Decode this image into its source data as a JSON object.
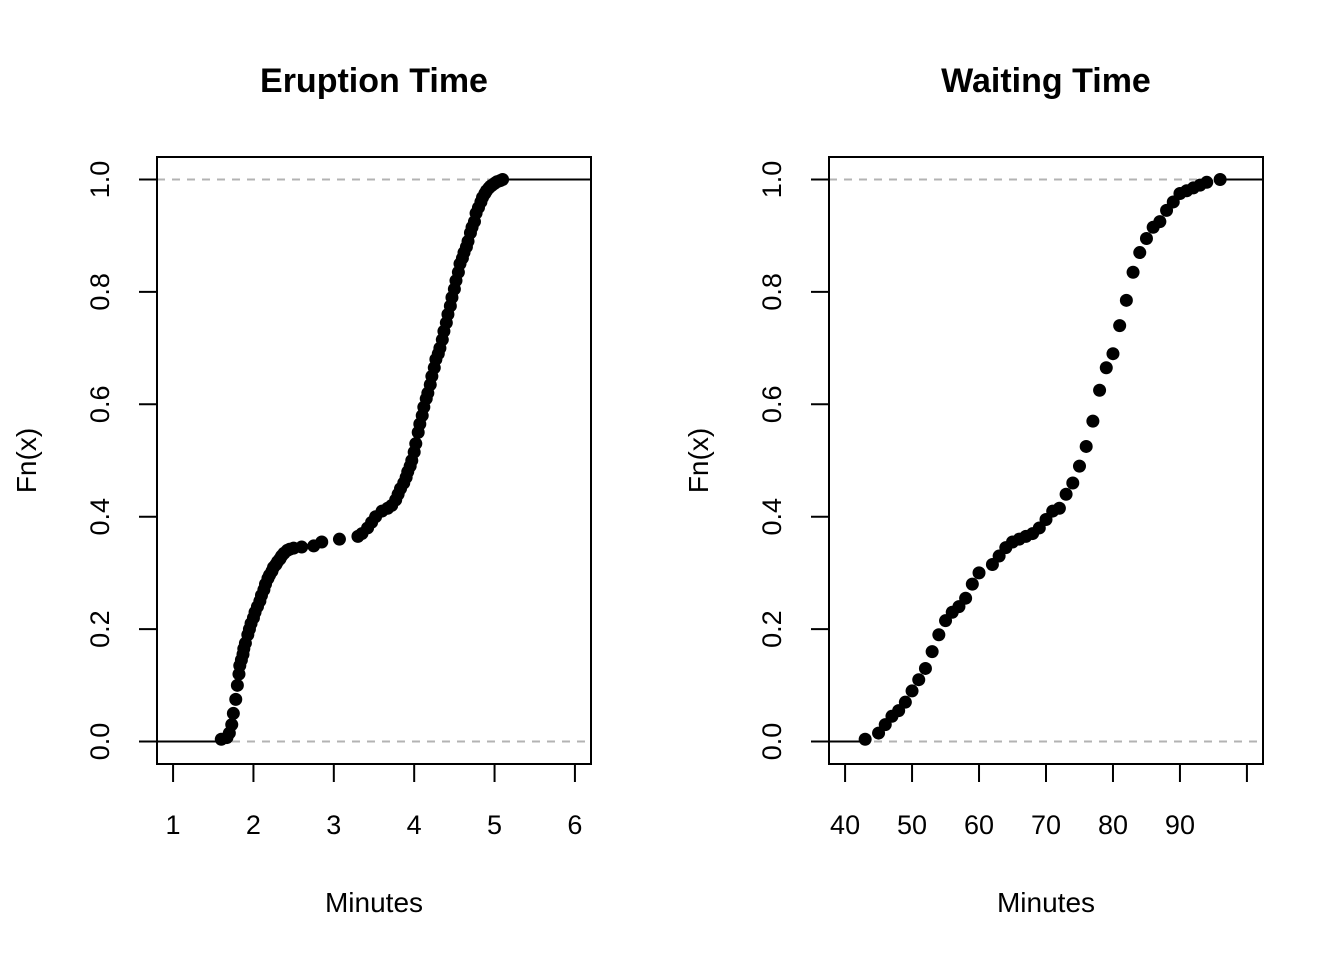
{
  "chart_data": [
    {
      "type": "scatter",
      "title": "Eruption Time",
      "xlabel": "Minutes",
      "ylabel": "Fn(x)",
      "xlim": [
        0.8,
        6.2
      ],
      "ylim": [
        -0.04,
        1.04
      ],
      "xticks": [
        "1",
        "2",
        "3",
        "4",
        "5",
        "6"
      ],
      "yticks": [
        "0.0",
        "0.2",
        "0.4",
        "0.6",
        "0.8",
        "1.0"
      ],
      "reference_lines": [
        0,
        1
      ],
      "x": [
        1.6,
        1.67,
        1.7,
        1.73,
        1.75,
        1.78,
        1.8,
        1.82,
        1.83,
        1.85,
        1.87,
        1.88,
        1.9,
        1.93,
        1.95,
        1.97,
        2.0,
        2.02,
        2.05,
        2.08,
        2.1,
        2.13,
        2.15,
        2.18,
        2.2,
        2.23,
        2.25,
        2.28,
        2.3,
        2.33,
        2.35,
        2.38,
        2.42,
        2.45,
        2.5,
        2.6,
        2.75,
        2.85,
        3.07,
        3.3,
        3.35,
        3.42,
        3.47,
        3.52,
        3.6,
        3.67,
        3.72,
        3.77,
        3.8,
        3.83,
        3.87,
        3.9,
        3.92,
        3.95,
        3.97,
        4.0,
        4.02,
        4.05,
        4.07,
        4.1,
        4.12,
        4.15,
        4.17,
        4.2,
        4.22,
        4.25,
        4.27,
        4.3,
        4.32,
        4.35,
        4.37,
        4.4,
        4.42,
        4.45,
        4.47,
        4.5,
        4.52,
        4.55,
        4.57,
        4.6,
        4.62,
        4.65,
        4.67,
        4.7,
        4.72,
        4.75,
        4.77,
        4.8,
        4.83,
        4.85,
        4.88,
        4.9,
        4.93,
        4.95,
        4.97,
        5.0,
        5.03,
        5.07,
        5.1
      ],
      "y": [
        0.004,
        0.007,
        0.015,
        0.03,
        0.05,
        0.075,
        0.1,
        0.12,
        0.135,
        0.145,
        0.155,
        0.165,
        0.175,
        0.19,
        0.2,
        0.21,
        0.22,
        0.23,
        0.24,
        0.25,
        0.26,
        0.27,
        0.28,
        0.29,
        0.296,
        0.303,
        0.31,
        0.315,
        0.32,
        0.325,
        0.33,
        0.335,
        0.34,
        0.342,
        0.344,
        0.346,
        0.348,
        0.355,
        0.36,
        0.365,
        0.37,
        0.38,
        0.39,
        0.4,
        0.41,
        0.415,
        0.42,
        0.43,
        0.44,
        0.45,
        0.46,
        0.47,
        0.48,
        0.49,
        0.5,
        0.515,
        0.53,
        0.55,
        0.565,
        0.58,
        0.595,
        0.61,
        0.62,
        0.635,
        0.65,
        0.665,
        0.68,
        0.69,
        0.7,
        0.715,
        0.73,
        0.745,
        0.76,
        0.775,
        0.79,
        0.805,
        0.82,
        0.835,
        0.85,
        0.86,
        0.87,
        0.88,
        0.89,
        0.905,
        0.915,
        0.925,
        0.94,
        0.95,
        0.96,
        0.968,
        0.975,
        0.98,
        0.985,
        0.988,
        0.99,
        0.993,
        0.996,
        0.998,
        1.0
      ]
    },
    {
      "type": "scatter",
      "title": "Waiting Time",
      "xlabel": "Minutes",
      "ylabel": "Fn(x)",
      "xlim": [
        37.6,
        102.4
      ],
      "ylim": [
        -0.04,
        1.04
      ],
      "xticks": [
        "40",
        "50",
        "60",
        "70",
        "80",
        "90"
      ],
      "yticks": [
        "0.0",
        "0.2",
        "0.4",
        "0.6",
        "0.8",
        "1.0"
      ],
      "reference_lines": [
        0,
        1
      ],
      "x": [
        43,
        45,
        46,
        47,
        48,
        49,
        50,
        51,
        52,
        53,
        54,
        55,
        56,
        57,
        58,
        59,
        60,
        62,
        63,
        64,
        65,
        66,
        67,
        68,
        69,
        70,
        71,
        72,
        73,
        74,
        75,
        76,
        77,
        78,
        79,
        80,
        81,
        82,
        83,
        84,
        85,
        86,
        87,
        88,
        89,
        90,
        91,
        92,
        93,
        94,
        96
      ],
      "y": [
        0.004,
        0.015,
        0.03,
        0.045,
        0.055,
        0.07,
        0.09,
        0.11,
        0.13,
        0.16,
        0.19,
        0.215,
        0.23,
        0.24,
        0.255,
        0.28,
        0.3,
        0.315,
        0.33,
        0.345,
        0.355,
        0.36,
        0.365,
        0.37,
        0.38,
        0.395,
        0.41,
        0.415,
        0.44,
        0.46,
        0.49,
        0.525,
        0.57,
        0.625,
        0.665,
        0.69,
        0.74,
        0.785,
        0.835,
        0.87,
        0.895,
        0.915,
        0.925,
        0.945,
        0.96,
        0.975,
        0.98,
        0.985,
        0.99,
        0.995,
        1.0
      ]
    }
  ]
}
